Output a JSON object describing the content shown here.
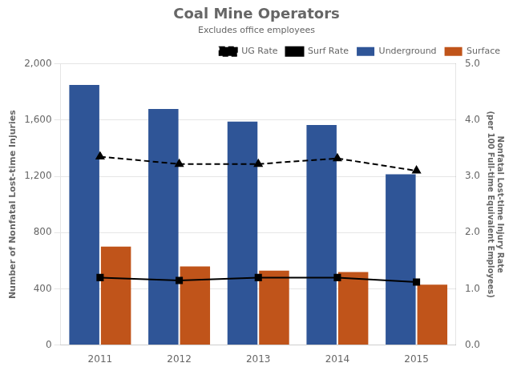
{
  "chart_data": {
    "type": "bar",
    "title": "Coal Mine Operators",
    "subtitle": "Excludes office employees",
    "categories": [
      "2011",
      "2012",
      "2013",
      "2014",
      "2015"
    ],
    "series": [
      {
        "name": "Underground",
        "type": "bar",
        "color": "#2F5597",
        "values": [
          1850,
          1680,
          1590,
          1565,
          1215
        ]
      },
      {
        "name": "Surface",
        "type": "bar",
        "color": "#C0541A",
        "values": [
          700,
          560,
          530,
          520,
          430
        ]
      },
      {
        "name": "UG Rate",
        "type": "line",
        "axis": "y2",
        "color": "#000000",
        "marker": "triangle",
        "line_style": "dashed",
        "values": [
          3.35,
          3.22,
          3.22,
          3.32,
          3.1
        ]
      },
      {
        "name": "Surf Rate",
        "type": "line",
        "axis": "y2",
        "color": "#000000",
        "marker": "square",
        "line_style": "solid",
        "values": [
          1.2,
          1.15,
          1.2,
          1.2,
          1.12
        ]
      }
    ],
    "ylabel": "Number of Nonfatal Lost-time Injuries",
    "y2label": "Nonfatal Lost-time Injury Rate\n(per 100 Full-time Equivalent Employees)",
    "ylim": [
      0,
      2000
    ],
    "yticks": [
      0,
      400,
      800,
      {
        "value": 1200,
        "label": "1,200"
      },
      {
        "value": 1600,
        "label": "1,600"
      },
      {
        "value": 2000,
        "label": "2,000"
      }
    ],
    "y2lim": [
      0.0,
      5.0
    ],
    "y2ticks": [
      {
        "value": 0,
        "label": "0.0"
      },
      {
        "value": 1,
        "label": "1.0"
      },
      {
        "value": 2,
        "label": "2.0"
      },
      {
        "value": 3,
        "label": "3.0"
      },
      {
        "value": 4,
        "label": "4.0"
      },
      {
        "value": 5,
        "label": "5.0"
      }
    ],
    "grid": true,
    "legend": "upper right"
  }
}
